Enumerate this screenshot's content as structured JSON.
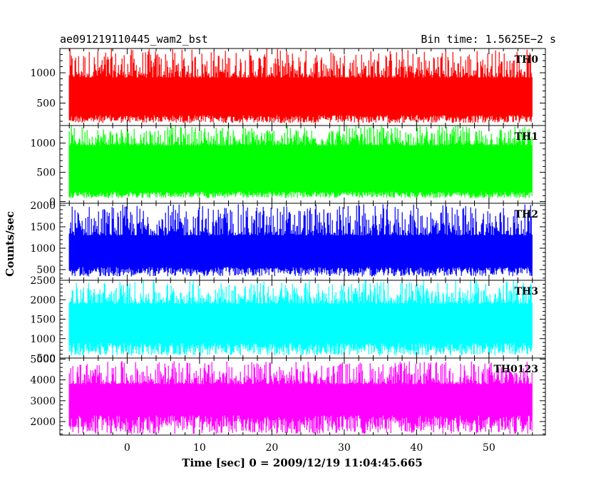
{
  "header": {
    "title": "ae091219110445_wam2_bst",
    "bin_time": "Bin time: 1.5625E−2 s"
  },
  "chart_data": {
    "type": "line",
    "title": "ae091219110445_wam2_bst",
    "xlabel": "Time [sec] 0 = 2009/12/19 11:04:45.665",
    "ylabel": "Counts/sec",
    "xlim": [
      -9.3,
      57.8
    ],
    "xticks": [
      0,
      10,
      20,
      30,
      40,
      50
    ],
    "x_range_of_data": [
      -8,
      56
    ],
    "grid": false,
    "panels": [
      {
        "name": "TH0",
        "color": "#ff0000",
        "ylim": [
          130,
          1400
        ],
        "yticks": [
          500,
          1000
        ],
        "yticklabels": [
          "500",
          "1000"
        ],
        "band_low": 300,
        "band_high": 920,
        "min": 170,
        "max": 1400
      },
      {
        "name": "TH1",
        "color": "#00ff00",
        "ylim": [
          -30,
          1300
        ],
        "yticks": [
          0,
          500,
          1000
        ],
        "yticklabels": [
          "0",
          "500",
          "1000"
        ],
        "band_low": 170,
        "band_high": 960,
        "min": 60,
        "max": 1300
      },
      {
        "name": "TH2",
        "color": "#0000ff",
        "ylim": [
          250,
          2050
        ],
        "yticks": [
          500,
          1000,
          1500,
          2000
        ],
        "yticklabels": [
          "500",
          "1000",
          "1500",
          "2000"
        ],
        "band_low": 560,
        "band_high": 1300,
        "min": 340,
        "max": 2030
      },
      {
        "name": "TH3",
        "color": "#00ffff",
        "ylim": [
          500,
          2500
        ],
        "yticks": [
          500,
          1000,
          1500,
          2000,
          2500
        ],
        "yticklabels": [
          "500",
          "1000",
          "1500",
          "2000",
          "2500"
        ],
        "band_low": 880,
        "band_high": 1900,
        "min": 560,
        "max": 2500
      },
      {
        "name": "TH0123",
        "color": "#ff00ff",
        "ylim": [
          1350,
          5050
        ],
        "yticks": [
          2000,
          3000,
          4000,
          5000
        ],
        "yticklabels": [
          "2000",
          "3000",
          "4000",
          "5000"
        ],
        "band_low": 2300,
        "band_high": 3800,
        "min": 1400,
        "max": 4900
      }
    ]
  }
}
